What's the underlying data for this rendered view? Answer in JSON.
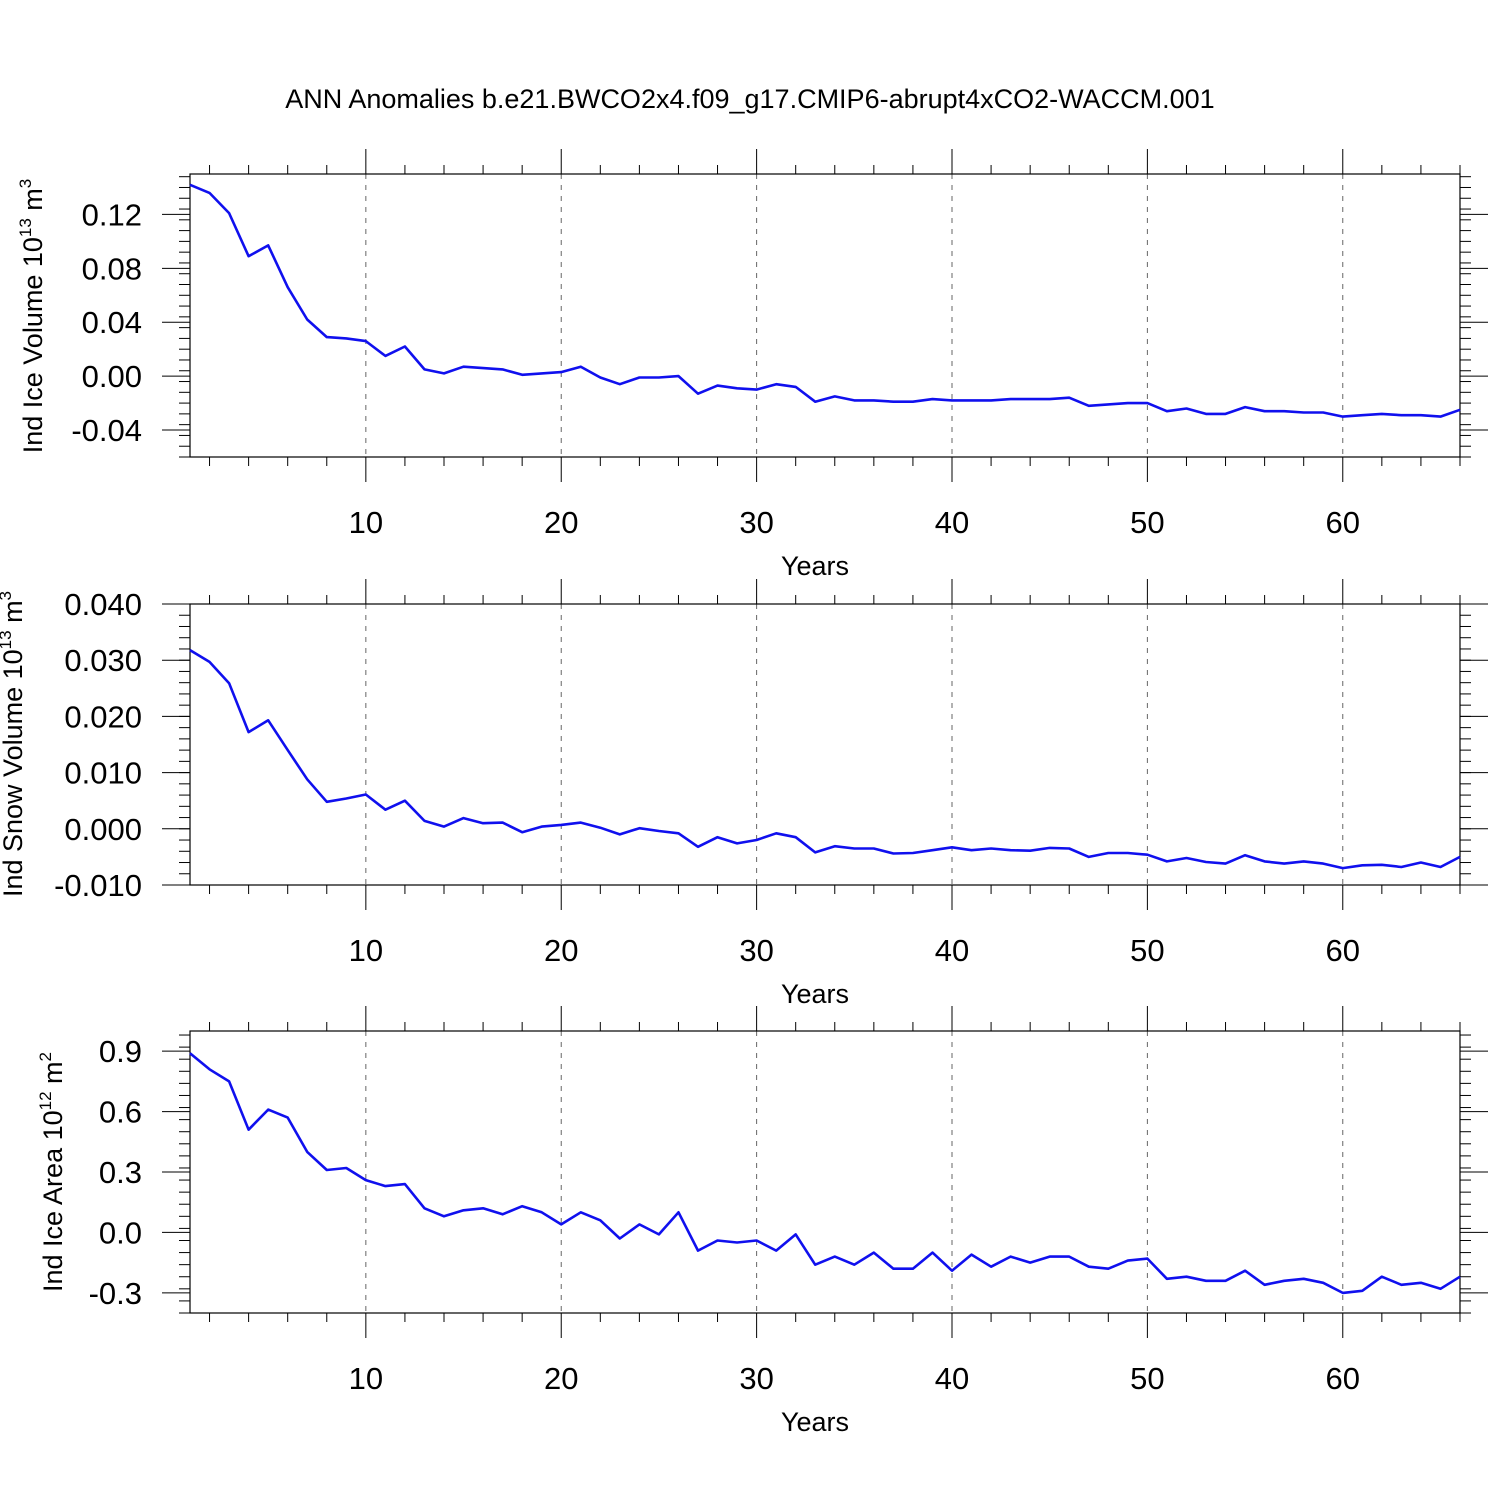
{
  "title": "ANN Anomalies b.e21.BWCO2x4.f09_g17.CMIP6-abrupt4xCO2-WACCM.001",
  "line_color": "#1010ee",
  "chart_data": [
    {
      "type": "line",
      "xlabel": "Years",
      "ylabel": {
        "text": "Ind Ice Volume 10",
        "exp": "13",
        "unit": " m",
        "unit_exp": "3"
      },
      "xlim": [
        1,
        66
      ],
      "ylim": [
        -0.06,
        0.15
      ],
      "xticks": [
        10,
        20,
        30,
        40,
        50,
        60
      ],
      "yticks": [
        -0.04,
        0.0,
        0.04,
        0.08,
        0.12
      ],
      "ytick_labels": [
        "-0.04",
        "0.00",
        "0.04",
        "0.08",
        "0.12"
      ],
      "grid": "x-dashed",
      "series": [
        {
          "x": [
            1,
            2,
            3,
            4,
            5,
            6,
            7,
            8,
            9,
            10,
            11,
            12,
            13,
            14,
            15,
            16,
            17,
            18,
            19,
            20,
            21,
            22,
            23,
            24,
            25,
            26,
            27,
            28,
            29,
            30,
            31,
            32,
            33,
            34,
            35,
            36,
            37,
            38,
            39,
            40,
            41,
            42,
            43,
            44,
            45,
            46,
            47,
            48,
            49,
            50,
            51,
            52,
            53,
            54,
            55,
            56,
            57,
            58,
            59,
            60,
            61,
            62,
            63,
            64,
            65,
            66
          ],
          "values": [
            0.142,
            0.136,
            0.121,
            0.089,
            0.097,
            0.066,
            0.042,
            0.029,
            0.028,
            0.026,
            0.015,
            0.022,
            0.005,
            0.002,
            0.007,
            0.006,
            0.005,
            0.001,
            0.002,
            0.003,
            0.007,
            -0.001,
            -0.006,
            -0.001,
            -0.001,
            0.0,
            -0.013,
            -0.007,
            -0.009,
            -0.01,
            -0.006,
            -0.008,
            -0.019,
            -0.015,
            -0.018,
            -0.018,
            -0.019,
            -0.019,
            -0.017,
            -0.018,
            -0.018,
            -0.018,
            -0.017,
            -0.017,
            -0.017,
            -0.016,
            -0.022,
            -0.021,
            -0.02,
            -0.02,
            -0.026,
            -0.024,
            -0.028,
            -0.028,
            -0.023,
            -0.026,
            -0.026,
            -0.027,
            -0.027,
            -0.03,
            -0.029,
            -0.028,
            -0.029,
            -0.029,
            -0.03,
            -0.025
          ]
        }
      ]
    },
    {
      "type": "line",
      "xlabel": "Years",
      "ylabel": {
        "text": "Ind Snow Volume 10",
        "exp": "13",
        "unit": " m",
        "unit_exp": "3"
      },
      "xlim": [
        1,
        66
      ],
      "ylim": [
        -0.01,
        0.04
      ],
      "xticks": [
        10,
        20,
        30,
        40,
        50,
        60
      ],
      "yticks": [
        -0.01,
        0.0,
        0.01,
        0.02,
        0.03,
        0.04
      ],
      "ytick_labels": [
        "-0.010",
        "0.000",
        "0.010",
        "0.020",
        "0.030",
        "0.040"
      ],
      "grid": "x-dashed",
      "series": [
        {
          "x": [
            1,
            2,
            3,
            4,
            5,
            6,
            7,
            8,
            9,
            10,
            11,
            12,
            13,
            14,
            15,
            16,
            17,
            18,
            19,
            20,
            21,
            22,
            23,
            24,
            25,
            26,
            27,
            28,
            29,
            30,
            31,
            32,
            33,
            34,
            35,
            36,
            37,
            38,
            39,
            40,
            41,
            42,
            43,
            44,
            45,
            46,
            47,
            48,
            49,
            50,
            51,
            52,
            53,
            54,
            55,
            56,
            57,
            58,
            59,
            60,
            61,
            62,
            63,
            64,
            65,
            66
          ],
          "values": [
            0.0318,
            0.0297,
            0.0259,
            0.0172,
            0.0193,
            0.014,
            0.0088,
            0.0048,
            0.0054,
            0.0061,
            0.0034,
            0.005,
            0.0014,
            0.0004,
            0.0019,
            0.001,
            0.0011,
            -0.0006,
            0.0004,
            0.0007,
            0.0011,
            0.0002,
            -0.001,
            0.0001,
            -0.0004,
            -0.0008,
            -0.0032,
            -0.0015,
            -0.0026,
            -0.002,
            -0.0008,
            -0.0015,
            -0.0042,
            -0.0031,
            -0.0035,
            -0.0035,
            -0.0044,
            -0.0043,
            -0.0038,
            -0.0033,
            -0.0038,
            -0.0035,
            -0.0038,
            -0.0039,
            -0.0034,
            -0.0035,
            -0.005,
            -0.0043,
            -0.0043,
            -0.0046,
            -0.0058,
            -0.0052,
            -0.0059,
            -0.0062,
            -0.0047,
            -0.0058,
            -0.0062,
            -0.0058,
            -0.0062,
            -0.007,
            -0.0065,
            -0.0064,
            -0.0068,
            -0.006,
            -0.0068,
            -0.005
          ]
        }
      ]
    },
    {
      "type": "line",
      "xlabel": "Years",
      "ylabel": {
        "text": "Ind Ice Area 10",
        "exp": "12",
        "unit": " m",
        "unit_exp": "2"
      },
      "xlim": [
        1,
        66
      ],
      "ylim": [
        -0.4,
        1.0
      ],
      "xticks": [
        10,
        20,
        30,
        40,
        50,
        60
      ],
      "yticks": [
        -0.3,
        0.0,
        0.3,
        0.6,
        0.9
      ],
      "ytick_labels": [
        "-0.3",
        "0.0",
        "0.3",
        "0.6",
        "0.9"
      ],
      "grid": "x-dashed",
      "series": [
        {
          "x": [
            1,
            2,
            3,
            4,
            5,
            6,
            7,
            8,
            9,
            10,
            11,
            12,
            13,
            14,
            15,
            16,
            17,
            18,
            19,
            20,
            21,
            22,
            23,
            24,
            25,
            26,
            27,
            28,
            29,
            30,
            31,
            32,
            33,
            34,
            35,
            36,
            37,
            38,
            39,
            40,
            41,
            42,
            43,
            44,
            45,
            46,
            47,
            48,
            49,
            50,
            51,
            52,
            53,
            54,
            55,
            56,
            57,
            58,
            59,
            60,
            61,
            62,
            63,
            64,
            65,
            66
          ],
          "values": [
            0.89,
            0.81,
            0.75,
            0.51,
            0.61,
            0.57,
            0.4,
            0.31,
            0.32,
            0.26,
            0.23,
            0.24,
            0.12,
            0.08,
            0.11,
            0.12,
            0.09,
            0.13,
            0.1,
            0.04,
            0.1,
            0.06,
            -0.03,
            0.04,
            -0.01,
            0.1,
            -0.09,
            -0.04,
            -0.05,
            -0.04,
            -0.09,
            -0.01,
            -0.16,
            -0.12,
            -0.16,
            -0.1,
            -0.18,
            -0.18,
            -0.1,
            -0.19,
            -0.11,
            -0.17,
            -0.12,
            -0.15,
            -0.12,
            -0.12,
            -0.17,
            -0.18,
            -0.14,
            -0.13,
            -0.23,
            -0.22,
            -0.24,
            -0.24,
            -0.19,
            -0.26,
            -0.24,
            -0.23,
            -0.25,
            -0.3,
            -0.29,
            -0.22,
            -0.26,
            -0.25,
            -0.28,
            -0.22
          ]
        }
      ]
    }
  ]
}
